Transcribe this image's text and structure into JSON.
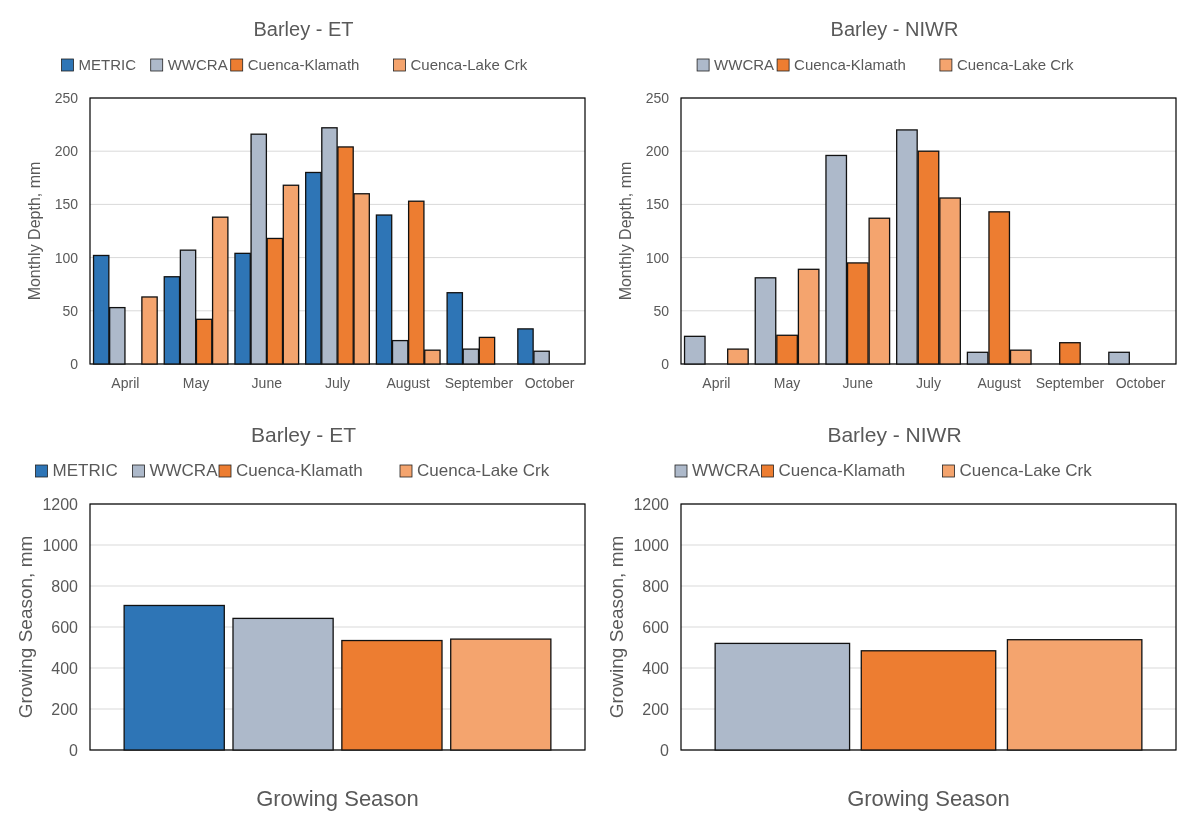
{
  "chart_data": [
    {
      "type": "bar",
      "title": "Barley - ET",
      "ylabel": "Monthly Depth, mm",
      "categories": [
        "April",
        "May",
        "June",
        "July",
        "August",
        "September",
        "October"
      ],
      "ylim": [
        0,
        250
      ],
      "yticks": [
        0,
        50,
        100,
        150,
        200,
        250
      ],
      "grid": "y",
      "legend": "top",
      "series": [
        {
          "name": "METRIC",
          "color": "#2e75b6",
          "values": [
            102,
            82,
            104,
            180,
            140,
            67,
            33
          ]
        },
        {
          "name": "WWCRA",
          "color": "#adb9ca",
          "values": [
            53,
            107,
            216,
            222,
            22,
            14,
            12
          ]
        },
        {
          "name": "Cuenca-Klamath",
          "color": "#ed7d31",
          "values": [
            null,
            42,
            118,
            204,
            153,
            25,
            null
          ]
        },
        {
          "name": "Cuenca-Lake Crk",
          "color": "#f4a46e",
          "values": [
            63,
            138,
            168,
            160,
            13,
            null,
            null
          ]
        }
      ]
    },
    {
      "type": "bar",
      "title": "Barley - NIWR",
      "ylabel": "Monthly Depth, mm",
      "categories": [
        "April",
        "May",
        "June",
        "July",
        "August",
        "September",
        "October"
      ],
      "ylim": [
        0,
        250
      ],
      "yticks": [
        0,
        50,
        100,
        150,
        200,
        250
      ],
      "grid": "y",
      "legend": "top",
      "series": [
        {
          "name": "WWCRA",
          "color": "#adb9ca",
          "values": [
            26,
            81,
            196,
            220,
            11,
            null,
            11
          ]
        },
        {
          "name": "Cuenca-Klamath",
          "color": "#ed7d31",
          "values": [
            null,
            27,
            95,
            200,
            143,
            20,
            null
          ]
        },
        {
          "name": "Cuenca-Lake Crk",
          "color": "#f4a46e",
          "values": [
            14,
            89,
            137,
            156,
            13,
            null,
            null
          ]
        }
      ]
    },
    {
      "type": "bar",
      "title": "Barley - ET",
      "xlabel": "Growing Season",
      "ylabel": "Growing Season, mm",
      "categories": [
        null
      ],
      "ylim": [
        0,
        1200
      ],
      "yticks": [
        0,
        200,
        400,
        600,
        800,
        1000,
        1200
      ],
      "grid": "y",
      "legend": "top",
      "series": [
        {
          "name": "METRIC",
          "color": "#2e75b6",
          "values": [
            705
          ]
        },
        {
          "name": "WWCRA",
          "color": "#adb9ca",
          "values": [
            642
          ]
        },
        {
          "name": "Cuenca-Klamath",
          "color": "#ed7d31",
          "values": [
            534
          ]
        },
        {
          "name": "Cuenca-Lake Crk",
          "color": "#f4a46e",
          "values": [
            541
          ]
        }
      ]
    },
    {
      "type": "bar",
      "title": "Barley - NIWR",
      "xlabel": "Growing Season",
      "ylabel": "Growing Season, mm",
      "categories": [
        null
      ],
      "ylim": [
        0,
        1200
      ],
      "yticks": [
        0,
        200,
        400,
        600,
        800,
        1000,
        1200
      ],
      "grid": "y",
      "legend": "top",
      "series": [
        {
          "name": "WWCRA",
          "color": "#adb9ca",
          "values": [
            520
          ]
        },
        {
          "name": "Cuenca-Klamath",
          "color": "#ed7d31",
          "values": [
            484
          ]
        },
        {
          "name": "Cuenca-Lake Crk",
          "color": "#f4a46e",
          "values": [
            538
          ]
        }
      ]
    }
  ]
}
